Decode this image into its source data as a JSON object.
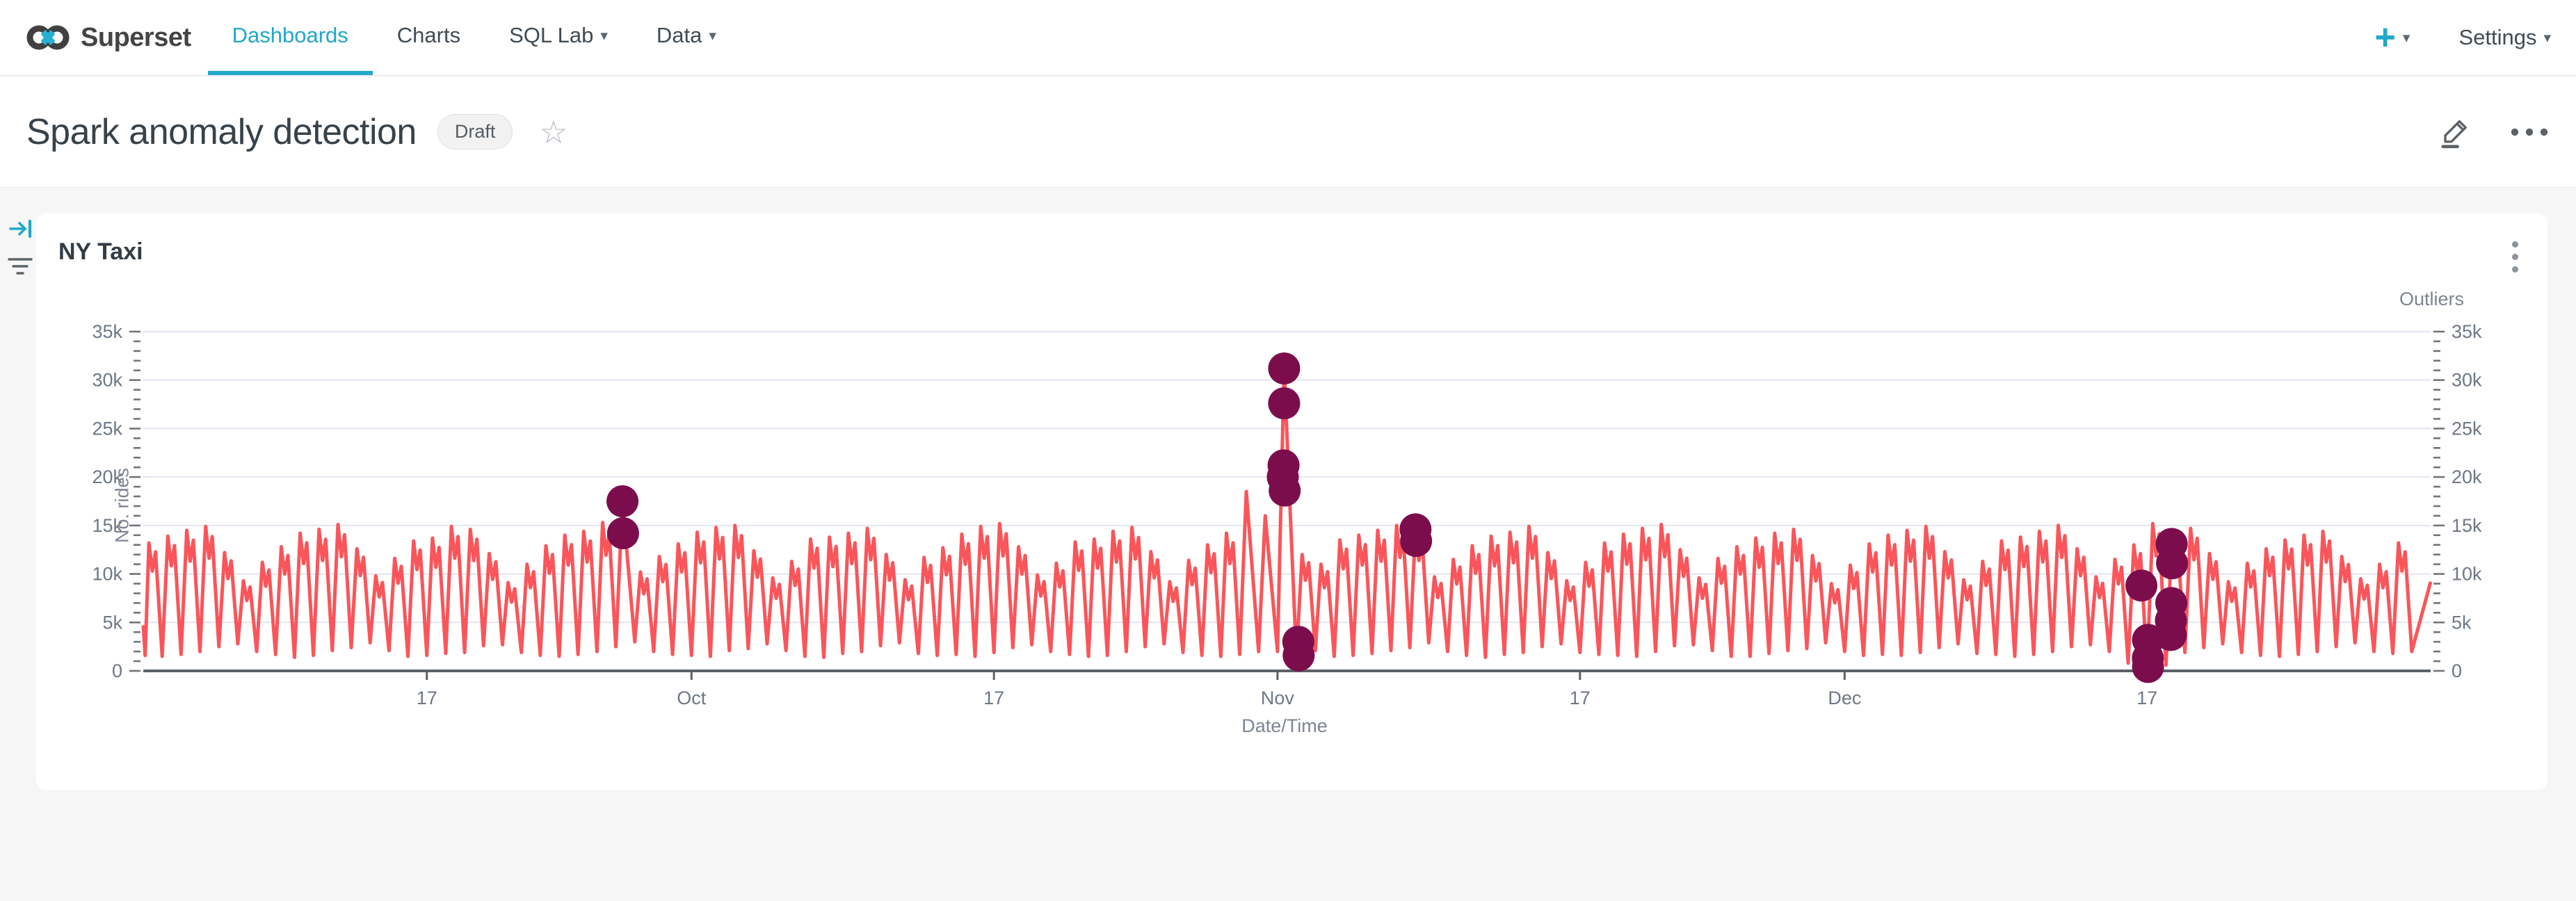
{
  "app": {
    "brand": "Superset",
    "nav": [
      {
        "label": "Dashboards",
        "active": true
      },
      {
        "label": "Charts",
        "active": false
      },
      {
        "label": "SQL Lab",
        "active": false
      },
      {
        "label": "Data",
        "active": false
      }
    ],
    "settings_label": "Settings"
  },
  "icons": {
    "plus": "+",
    "caret_down": "▾",
    "star": "☆"
  },
  "dashboard": {
    "title": "Spark anomaly detection",
    "status_badge": "Draft"
  },
  "chart_card": {
    "title": "NY Taxi"
  },
  "colors": {
    "accent": "#1fa8c9",
    "line": "#fa555a",
    "outlier": "#7c0d4d",
    "grid": "#e1e5f0",
    "axis_text": "#6e7787",
    "axis_line": "#5d6267",
    "tick": "#70757b"
  },
  "chart_data": {
    "type": "line",
    "title": "NY Taxi",
    "xlabel": "Date/Time",
    "ylabel": "No. rides",
    "ylabel_right": "Outliers",
    "ylim_thousands": [
      0,
      35
    ],
    "x_start_date": "Sep 2",
    "x_days": 121,
    "y_ticks_thousands": [
      0,
      5,
      10,
      15,
      20,
      25,
      30,
      35
    ],
    "x_ticks": [
      {
        "label": "17",
        "day": 15
      },
      {
        "label": "Oct",
        "day": 29
      },
      {
        "label": "17",
        "day": 45
      },
      {
        "label": "Nov",
        "day": 60
      },
      {
        "label": "17",
        "day": 76
      },
      {
        "label": "Dec",
        "day": 90
      },
      {
        "label": "17",
        "day": 106
      }
    ],
    "series": {
      "name": "No. rides (daily cycle, values in thousands)",
      "start_value": 4.7,
      "end_value": 9.2,
      "daily_troughs": [
        1.6,
        1.5,
        1.7,
        2.0,
        2.5,
        2.8,
        2.0,
        1.7,
        1.4,
        1.6,
        2.1,
        2.4,
        2.9,
        2.1,
        1.5,
        1.6,
        1.8,
        1.9,
        2.6,
        2.7,
        1.9,
        1.6,
        1.5,
        1.7,
        2.0,
        2.5,
        3.0,
        2.0,
        1.7,
        1.6,
        1.5,
        2.1,
        2.3,
        2.8,
        2.1,
        1.5,
        1.4,
        1.8,
        2.0,
        2.6,
        2.9,
        1.8,
        1.6,
        1.7,
        1.5,
        1.9,
        2.4,
        2.7,
        2.0,
        1.7,
        1.5,
        1.6,
        2.0,
        2.5,
        2.8,
        1.9,
        1.6,
        1.5,
        1.7,
        2.0,
        2.0,
        1.4,
        2.1,
        1.5,
        1.6,
        1.8,
        2.1,
        2.4,
        2.9,
        2.0,
        1.6,
        1.4,
        1.7,
        1.9,
        2.5,
        2.8,
        1.9,
        1.7,
        1.6,
        1.5,
        2.0,
        2.6,
        2.7,
        2.1,
        1.5,
        1.5,
        1.8,
        2.1,
        2.3,
        2.9,
        2.0,
        1.6,
        1.7,
        1.6,
        1.9,
        2.4,
        2.8,
        1.8,
        1.7,
        1.5,
        1.7,
        2.0,
        2.5,
        2.7,
        2.0,
        0.8,
        0.4,
        0.6,
        1.9,
        2.4,
        2.8,
        1.9,
        1.6,
        1.5,
        1.7,
        2.0,
        2.5,
        2.9,
        2.0,
        1.8,
        2.0
      ],
      "daily_peaks": [
        13.2,
        13.9,
        14.5,
        14.9,
        12.2,
        9.3,
        11.2,
        12.8,
        14.2,
        14.6,
        15.1,
        12.6,
        9.8,
        11.6,
        13.4,
        13.7,
        14.9,
        14.6,
        12.1,
        9.1,
        11.0,
        12.9,
        14.0,
        14.4,
        15.3,
        17.5,
        10.2,
        11.8,
        13.1,
        14.3,
        14.8,
        15.0,
        12.4,
        9.6,
        11.3,
        13.6,
        13.8,
        14.2,
        14.7,
        12.0,
        9.4,
        11.7,
        12.7,
        14.1,
        14.9,
        15.2,
        12.8,
        9.9,
        11.1,
        13.3,
        13.6,
        14.4,
        14.8,
        12.3,
        9.2,
        11.4,
        13.0,
        14.2,
        18.5,
        16.0,
        31.2,
        12.0,
        11.0,
        13.5,
        14.0,
        14.5,
        15.0,
        14.6,
        9.7,
        11.5,
        12.9,
        13.9,
        14.3,
        14.9,
        12.2,
        9.3,
        11.2,
        13.2,
        14.1,
        14.7,
        15.1,
        12.5,
        9.6,
        11.6,
        12.8,
        13.7,
        14.2,
        14.6,
        11.9,
        9.0,
        10.9,
        13.1,
        14.0,
        14.5,
        14.9,
        12.3,
        9.4,
        11.3,
        13.4,
        13.8,
        14.4,
        15.0,
        12.6,
        9.7,
        11.5,
        13.0,
        15.2,
        13.1,
        14.7,
        12.1,
        9.2,
        11.1,
        12.6,
        13.5,
        14.0,
        14.4,
        11.8,
        9.5,
        11.0,
        13.2,
        18.3
      ]
    },
    "outliers": {
      "name": "Outliers",
      "points": [
        {
          "day": 25.35,
          "value": 17.5
        },
        {
          "day": 25.38,
          "value": 14.2
        },
        {
          "day": 60.35,
          "value": 31.2
        },
        {
          "day": 60.35,
          "value": 27.6
        },
        {
          "day": 60.32,
          "value": 21.2
        },
        {
          "day": 60.28,
          "value": 20.0
        },
        {
          "day": 60.38,
          "value": 18.6
        },
        {
          "day": 61.1,
          "value": 3.0
        },
        {
          "day": 61.12,
          "value": 1.6
        },
        {
          "day": 67.3,
          "value": 14.6
        },
        {
          "day": 67.33,
          "value": 13.4
        },
        {
          "day": 105.7,
          "value": 8.8
        },
        {
          "day": 106.05,
          "value": 3.2
        },
        {
          "day": 106.04,
          "value": 1.3
        },
        {
          "day": 106.05,
          "value": 0.4
        },
        {
          "day": 107.3,
          "value": 13.1
        },
        {
          "day": 107.32,
          "value": 11.1
        },
        {
          "day": 107.28,
          "value": 7.0
        },
        {
          "day": 107.26,
          "value": 5.2
        },
        {
          "day": 107.25,
          "value": 3.7
        }
      ]
    }
  }
}
